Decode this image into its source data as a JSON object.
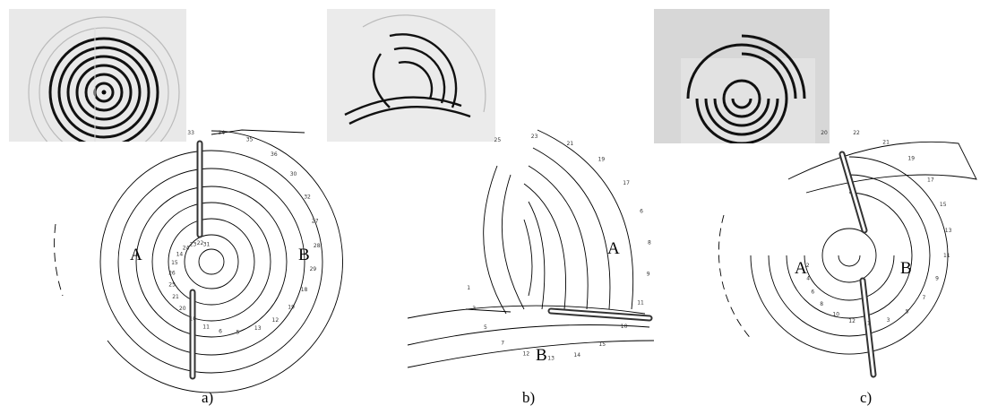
{
  "panels": [
    {
      "id": "a",
      "caption": "a)",
      "region_left": "A",
      "region_right": "B",
      "contour_numbers": [
        "33",
        "34",
        "35",
        "36",
        "30",
        "32",
        "27",
        "28",
        "29",
        "18",
        "19",
        "12",
        "13",
        "5",
        "6",
        "11",
        "10",
        "20",
        "21",
        "25",
        "26",
        "15",
        "14",
        "24",
        "23",
        "22",
        "31"
      ]
    },
    {
      "id": "b",
      "caption": "b)",
      "region_upper": "A",
      "region_lower": "B",
      "contour_numbers": [
        "25",
        "23",
        "21",
        "19",
        "17",
        "6",
        "8",
        "9",
        "11",
        "10",
        "15",
        "14",
        "13",
        "12",
        "7",
        "5",
        "3",
        "1"
      ]
    },
    {
      "id": "c",
      "caption": "c)",
      "region_left": "A",
      "region_right": "B",
      "contour_numbers": [
        "20",
        "22",
        "21",
        "19",
        "17",
        "15",
        "13",
        "11",
        "9",
        "7",
        "5",
        "3",
        "1",
        "12",
        "10",
        "8",
        "6",
        "4",
        "2"
      ]
    }
  ]
}
